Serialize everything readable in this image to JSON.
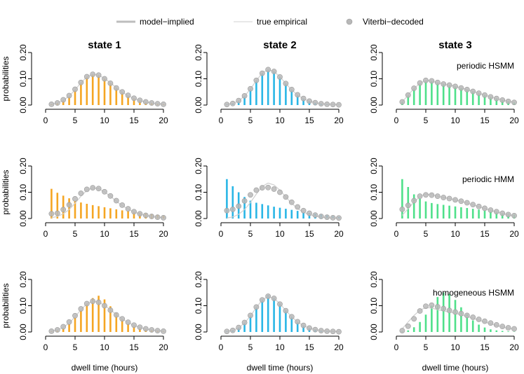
{
  "legend": {
    "items": [
      {
        "label": "model−implied",
        "kind": "line-thick",
        "color": "#bdbdbd"
      },
      {
        "label": "true empirical",
        "kind": "line-thin",
        "color": "#d0d0d0"
      },
      {
        "label": "Viterbi−decoded",
        "kind": "point",
        "color": "#b8b8b8"
      }
    ]
  },
  "colors": {
    "state1": "#f5a623",
    "state2": "#29b6e6",
    "state3": "#4fe08a",
    "model_line": "#bdbdbd",
    "empirical_line": "#d0d0d0",
    "points": "#b8b8b8"
  },
  "chart_data": {
    "type": "bar",
    "columns": [
      "state 1",
      "state 2",
      "state 3"
    ],
    "rows": [
      "periodic HSMM",
      "periodic HMM",
      "homogeneous HSMM"
    ],
    "xlabel": "dwell time (hours)",
    "ylabel": "probabilities",
    "xlim": [
      0,
      20
    ],
    "ylim": [
      0,
      0.2
    ],
    "x_ticks": [
      0,
      5,
      10,
      15,
      20
    ],
    "y_ticks": [
      "0.00",
      "0.10",
      "0.20"
    ],
    "x": [
      1,
      2,
      3,
      4,
      5,
      6,
      7,
      8,
      9,
      10,
      11,
      12,
      13,
      14,
      15,
      16,
      17,
      18,
      19,
      20
    ],
    "empirical": {
      "state 1": [
        0.003,
        0.008,
        0.018,
        0.034,
        0.058,
        0.085,
        0.107,
        0.117,
        0.114,
        0.101,
        0.085,
        0.066,
        0.049,
        0.036,
        0.025,
        0.017,
        0.011,
        0.008,
        0.005,
        0.003
      ],
      "state 2": [
        0.002,
        0.006,
        0.016,
        0.034,
        0.061,
        0.093,
        0.122,
        0.135,
        0.128,
        0.108,
        0.082,
        0.058,
        0.038,
        0.024,
        0.015,
        0.009,
        0.005,
        0.003,
        0.002,
        0.001
      ],
      "state 3": [
        0.012,
        0.038,
        0.063,
        0.083,
        0.093,
        0.091,
        0.085,
        0.08,
        0.076,
        0.071,
        0.065,
        0.059,
        0.052,
        0.045,
        0.038,
        0.031,
        0.025,
        0.019,
        0.014,
        0.01
      ]
    },
    "panels": [
      [
        {
          "viterbi": [
            0.003,
            0.008,
            0.02,
            0.036,
            0.06,
            0.086,
            0.108,
            0.117,
            0.114,
            0.1,
            0.083,
            0.065,
            0.05,
            0.037,
            0.026,
            0.018,
            0.012,
            0.008,
            0.005,
            0.003
          ],
          "model": [
            0.003,
            0.008,
            0.018,
            0.034,
            0.058,
            0.085,
            0.107,
            0.117,
            0.114,
            0.101,
            0.085,
            0.066,
            0.049,
            0.036,
            0.025,
            0.017,
            0.011,
            0.008,
            0.005,
            0.003
          ]
        },
        {
          "viterbi": [
            0.002,
            0.006,
            0.017,
            0.035,
            0.062,
            0.094,
            0.121,
            0.135,
            0.128,
            0.107,
            0.082,
            0.059,
            0.039,
            0.025,
            0.015,
            0.009,
            0.005,
            0.003,
            0.002,
            0.001
          ],
          "model": [
            0.002,
            0.006,
            0.016,
            0.034,
            0.061,
            0.093,
            0.122,
            0.135,
            0.128,
            0.108,
            0.082,
            0.058,
            0.038,
            0.024,
            0.015,
            0.009,
            0.005,
            0.003,
            0.002,
            0.001
          ]
        },
        {
          "viterbi": [
            0.012,
            0.038,
            0.064,
            0.084,
            0.094,
            0.092,
            0.086,
            0.08,
            0.076,
            0.071,
            0.065,
            0.059,
            0.052,
            0.045,
            0.038,
            0.031,
            0.025,
            0.019,
            0.014,
            0.01
          ],
          "model": [
            0.012,
            0.038,
            0.063,
            0.083,
            0.093,
            0.091,
            0.085,
            0.08,
            0.076,
            0.071,
            0.065,
            0.059,
            0.052,
            0.045,
            0.038,
            0.031,
            0.025,
            0.019,
            0.014,
            0.01
          ]
        }
      ],
      [
        {
          "viterbi": [
            0.018,
            0.02,
            0.034,
            0.052,
            0.075,
            0.096,
            0.111,
            0.117,
            0.114,
            0.102,
            0.086,
            0.068,
            0.051,
            0.037,
            0.026,
            0.018,
            0.012,
            0.008,
            0.005,
            0.003
          ],
          "model": [
            0.113,
            0.098,
            0.087,
            0.077,
            0.068,
            0.061,
            0.056,
            0.051,
            0.047,
            0.043,
            0.039,
            0.035,
            0.031,
            0.028,
            0.025,
            0.022,
            0.019,
            0.016,
            0.013,
            0.01
          ]
        },
        {
          "viterbi": [
            0.03,
            0.035,
            0.047,
            0.067,
            0.09,
            0.108,
            0.117,
            0.118,
            0.112,
            0.1,
            0.082,
            0.062,
            0.044,
            0.03,
            0.02,
            0.013,
            0.008,
            0.005,
            0.003,
            0.002
          ],
          "model": [
            0.15,
            0.123,
            0.1,
            0.082,
            0.068,
            0.06,
            0.055,
            0.05,
            0.045,
            0.041,
            0.037,
            0.033,
            0.029,
            0.025,
            0.021,
            0.018,
            0.015,
            0.012,
            0.009,
            0.006
          ]
        },
        {
          "viterbi": [
            0.035,
            0.05,
            0.068,
            0.085,
            0.09,
            0.089,
            0.085,
            0.08,
            0.076,
            0.071,
            0.066,
            0.06,
            0.053,
            0.046,
            0.039,
            0.032,
            0.026,
            0.02,
            0.015,
            0.011
          ],
          "model": [
            0.15,
            0.12,
            0.092,
            0.075,
            0.065,
            0.059,
            0.055,
            0.052,
            0.049,
            0.046,
            0.043,
            0.04,
            0.037,
            0.034,
            0.03,
            0.027,
            0.024,
            0.021,
            0.018,
            0.015
          ]
        }
      ],
      [
        {
          "viterbi": [
            0.003,
            0.008,
            0.02,
            0.038,
            0.062,
            0.088,
            0.108,
            0.117,
            0.113,
            0.1,
            0.083,
            0.065,
            0.05,
            0.037,
            0.026,
            0.018,
            0.012,
            0.008,
            0.005,
            0.003
          ],
          "model": [
            0.002,
            0.005,
            0.014,
            0.03,
            0.055,
            0.083,
            0.108,
            0.129,
            0.138,
            0.124,
            0.098,
            0.072,
            0.048,
            0.032,
            0.022,
            0.014,
            0.009,
            0.006,
            0.004,
            0.002
          ]
        },
        {
          "viterbi": [
            0.002,
            0.006,
            0.017,
            0.036,
            0.063,
            0.095,
            0.122,
            0.136,
            0.128,
            0.106,
            0.081,
            0.058,
            0.039,
            0.025,
            0.015,
            0.009,
            0.005,
            0.003,
            0.002,
            0.001
          ],
          "model": [
            0.002,
            0.006,
            0.016,
            0.035,
            0.062,
            0.095,
            0.124,
            0.14,
            0.13,
            0.109,
            0.082,
            0.057,
            0.037,
            0.023,
            0.014,
            0.008,
            0.005,
            0.003,
            0.002,
            0.001
          ]
        },
        {
          "viterbi": [
            0.005,
            0.022,
            0.05,
            0.08,
            0.098,
            0.102,
            0.096,
            0.089,
            0.082,
            0.076,
            0.07,
            0.063,
            0.056,
            0.048,
            0.041,
            0.034,
            0.027,
            0.021,
            0.016,
            0.012
          ],
          "model": [
            0.002,
            0.006,
            0.018,
            0.038,
            0.066,
            0.1,
            0.133,
            0.15,
            0.145,
            0.122,
            0.094,
            0.067,
            0.044,
            0.028,
            0.017,
            0.01,
            0.006,
            0.004,
            0.002,
            0.001
          ]
        }
      ]
    ]
  }
}
